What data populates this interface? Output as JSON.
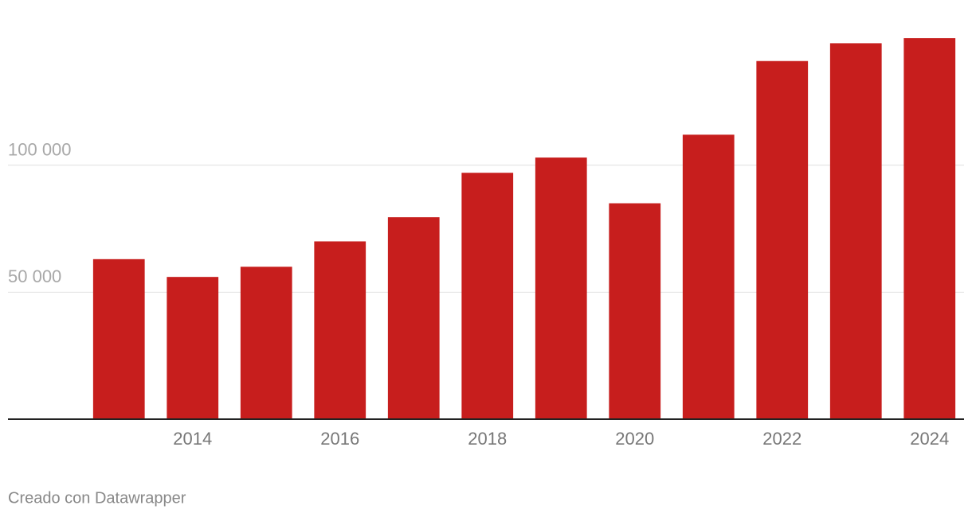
{
  "chart_data": {
    "type": "bar",
    "categories": [
      null,
      "2014",
      null,
      "2016",
      null,
      "2018",
      null,
      "2020",
      null,
      "2022",
      null,
      "2024"
    ],
    "values": [
      63000,
      56000,
      60000,
      70000,
      79500,
      97000,
      103000,
      85000,
      112000,
      141000,
      148000,
      150000
    ],
    "color": "#c71e1d",
    "ylim": [
      0,
      150000
    ],
    "yticks": [
      {
        "value": 50000,
        "label": "50 000"
      },
      {
        "value": 100000,
        "label": "100 000"
      }
    ],
    "grid": true
  },
  "footer": "Creado con Datawrapper"
}
